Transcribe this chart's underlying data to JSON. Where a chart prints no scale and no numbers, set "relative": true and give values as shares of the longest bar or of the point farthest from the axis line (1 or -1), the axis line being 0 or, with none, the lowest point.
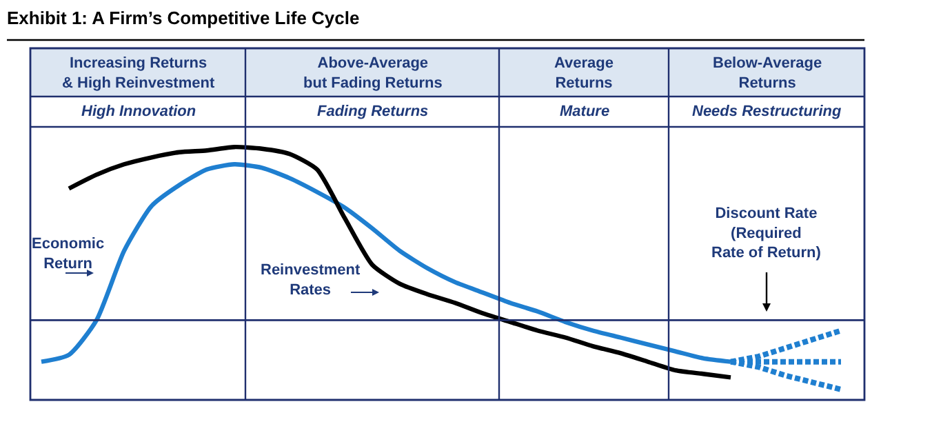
{
  "chart_data": {
    "type": "line",
    "relative": true,
    "title": "Exhibit 1: A Firm’s Competitive Life Cycle",
    "categories": [
      null,
      null,
      null,
      null,
      null,
      null,
      null,
      null,
      null,
      null,
      null,
      null,
      null,
      null,
      null,
      null,
      null,
      null,
      null,
      null,
      null,
      null,
      null,
      null,
      null,
      null,
      null,
      null,
      null,
      null
    ],
    "series": [
      {
        "name": "Economic\nReturn",
        "color": "#1f7fd0",
        "values": [
          -0.24,
          -0.2,
          0,
          0.4,
          0.66,
          0.78,
          0.87,
          0.9,
          0.88,
          0.82,
          0.74,
          0.65,
          0.53,
          0.4,
          0.3,
          0.22,
          0.16,
          0.1,
          0.05,
          -0.01,
          -0.06,
          -0.1,
          -0.14,
          -0.18,
          -0.22,
          -0.24,
          null,
          null,
          null,
          null
        ]
      },
      {
        "name": "Reinvestment\nRates",
        "color": "#000000",
        "values": [
          null,
          0.76,
          0.84,
          0.9,
          0.94,
          0.97,
          0.98,
          1.0,
          0.99,
          0.96,
          0.87,
          0.59,
          0.32,
          0.21,
          0.15,
          0.1,
          0.04,
          -0.01,
          -0.06,
          -0.1,
          -0.15,
          -0.19,
          -0.24,
          -0.29,
          -0.31,
          -0.33,
          null,
          null,
          null,
          null
        ]
      },
      {
        "color": "#1f7fd0",
        "line_style": "dotted",
        "values": [
          null,
          null,
          null,
          null,
          null,
          null,
          null,
          null,
          null,
          null,
          null,
          null,
          null,
          null,
          null,
          null,
          null,
          null,
          null,
          null,
          null,
          null,
          null,
          null,
          null,
          -0.24,
          -0.21,
          -0.16,
          -0.11,
          -0.06
        ]
      },
      {
        "color": "#1f7fd0",
        "line_style": "dotted",
        "values": [
          null,
          null,
          null,
          null,
          null,
          null,
          null,
          null,
          null,
          null,
          null,
          null,
          null,
          null,
          null,
          null,
          null,
          null,
          null,
          null,
          null,
          null,
          null,
          null,
          null,
          -0.24,
          -0.24,
          -0.24,
          -0.24,
          -0.24
        ]
      },
      {
        "color": "#1f7fd0",
        "line_style": "dotted",
        "values": [
          null,
          null,
          null,
          null,
          null,
          null,
          null,
          null,
          null,
          null,
          null,
          null,
          null,
          null,
          null,
          null,
          null,
          null,
          null,
          null,
          null,
          null,
          null,
          null,
          null,
          -0.24,
          -0.27,
          -0.32,
          -0.36,
          -0.4
        ]
      }
    ],
    "ref_lines": [
      {
        "axis": "y",
        "value": 0,
        "color": "#1f2f6e"
      }
    ],
    "annotations": [
      "Increasing Returns\n& High Reinvestment",
      "Above-Average\nbut Fading Returns",
      "Average\nReturns",
      "Below-Average\nReturns",
      "High Innovation",
      "Fading Returns",
      "Mature",
      "Needs Restructuring",
      "Discount Rate\n(Required\nRate of Return)"
    ],
    "legend": false
  }
}
